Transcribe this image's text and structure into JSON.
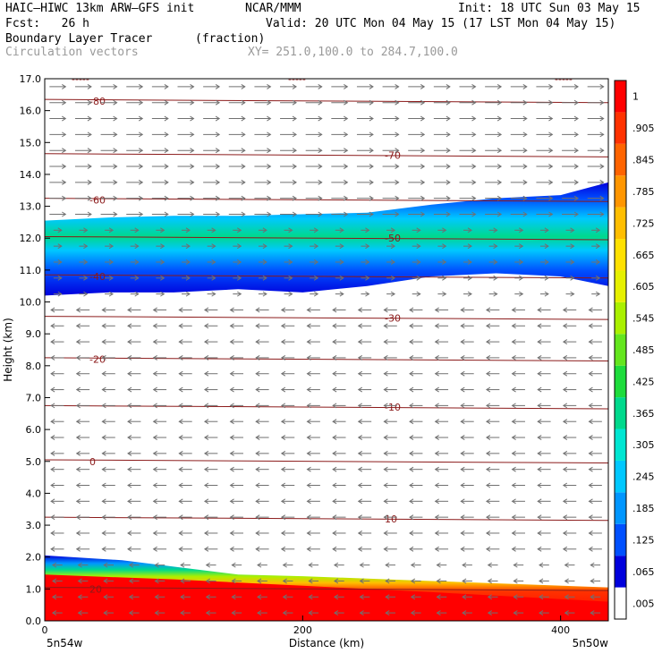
{
  "header": {
    "model": "HAIC–HIWC 13km ARW–GFS init",
    "org": "NCAR/MMM",
    "init": "Init: 18 UTC Sun 03 May 15",
    "fcst": "Fcst:   26 h",
    "valid": "Valid: 20 UTC Mon 04 May 15 (17 LST Mon 04 May 15)",
    "field": "Boundary Layer Tracer",
    "units": "(fraction)",
    "vectors": "Circulation vectors",
    "xy": "XY= 251.0,100.0 to 284.7,100.0"
  },
  "chart_data": {
    "type": "heatmap",
    "title": "Boundary Layer Tracer",
    "units": "(fraction)",
    "xlabel": "Distance (km)",
    "ylabel": "Height (km)",
    "xlim": [
      0,
      437
    ],
    "ylim": [
      0,
      17
    ],
    "x_ticks": [
      "0",
      "200",
      "400"
    ],
    "y_ticks": [
      "0.0",
      "1.0",
      "2.0",
      "3.0",
      "4.0",
      "5.0",
      "6.0",
      "7.0",
      "8.0",
      "9.0",
      "10.0",
      "11.0",
      "12.0",
      "13.0",
      "14.0",
      "15.0",
      "16.0",
      "17.0"
    ],
    "x_start_label": "5n54w",
    "x_end_label": "5n50w",
    "colorbar": {
      "labels": [
        ".005",
        ".065",
        ".125",
        ".185",
        ".245",
        ".305",
        ".365",
        ".425",
        ".485",
        ".545",
        ".605",
        ".665",
        ".725",
        ".785",
        ".845",
        ".905",
        "1"
      ],
      "colors": [
        "#ffffff",
        "#0000dc",
        "#0050ff",
        "#0096ff",
        "#00c8ff",
        "#00e6d2",
        "#00d98c",
        "#1edc3c",
        "#64e61e",
        "#aaf000",
        "#e6f000",
        "#ffe100",
        "#ffbe00",
        "#ff9600",
        "#ff6400",
        "#ff3200",
        "#ff0000"
      ]
    },
    "boundary_layer": {
      "surface_top": {
        "x": [
          0,
          60,
          150,
          200,
          300,
          437
        ],
        "y": [
          2.05,
          1.9,
          1.45,
          1.4,
          1.25,
          1.05
        ]
      },
      "core_top": {
        "x": [
          0,
          100,
          200,
          300,
          437
        ],
        "y": [
          1.45,
          1.3,
          1.1,
          0.9,
          0.6
        ]
      }
    },
    "upper_layer": {
      "x": [
        0,
        50,
        100,
        150,
        200,
        250,
        300,
        350,
        400,
        437
      ],
      "top": [
        12.55,
        12.65,
        12.7,
        12.7,
        12.75,
        12.8,
        13.05,
        13.25,
        13.35,
        13.75
      ],
      "bottom": [
        10.2,
        10.3,
        10.3,
        10.4,
        10.3,
        10.5,
        10.8,
        10.9,
        10.8,
        10.5
      ],
      "max_value": 0.305
    },
    "contours": {
      "name": "",
      "levels": [
        {
          "label": "-80",
          "y": 16.3
        },
        {
          "label": "-70",
          "y": 14.6
        },
        {
          "label": "-60",
          "y": 13.2
        },
        {
          "label": "-50",
          "y": 12.0
        },
        {
          "label": "-40",
          "y": 10.8
        },
        {
          "label": "-30",
          "y": 9.5
        },
        {
          "label": "-20",
          "y": 8.2
        },
        {
          "label": "-10",
          "y": 6.7
        },
        {
          "label": "0",
          "y": 5.0
        },
        {
          "label": "10",
          "y": 3.2
        },
        {
          "label": "20",
          "y": 1.0
        }
      ]
    },
    "top_labels": [
      "-----",
      "-----",
      "-----"
    ],
    "vectors": {
      "layers": [
        {
          "y_min": 12.5,
          "y_max": 17.0,
          "u": 1.0,
          "w": 0.0
        },
        {
          "y_min": 10.0,
          "y_max": 12.5,
          "u": 0.5,
          "w": 0.0
        },
        {
          "y_min": 2.0,
          "y_max": 10.0,
          "u": -0.8,
          "w": 0.0
        },
        {
          "y_min": 0.0,
          "y_max": 2.0,
          "u": -0.6,
          "w": 0.0
        }
      ]
    }
  }
}
